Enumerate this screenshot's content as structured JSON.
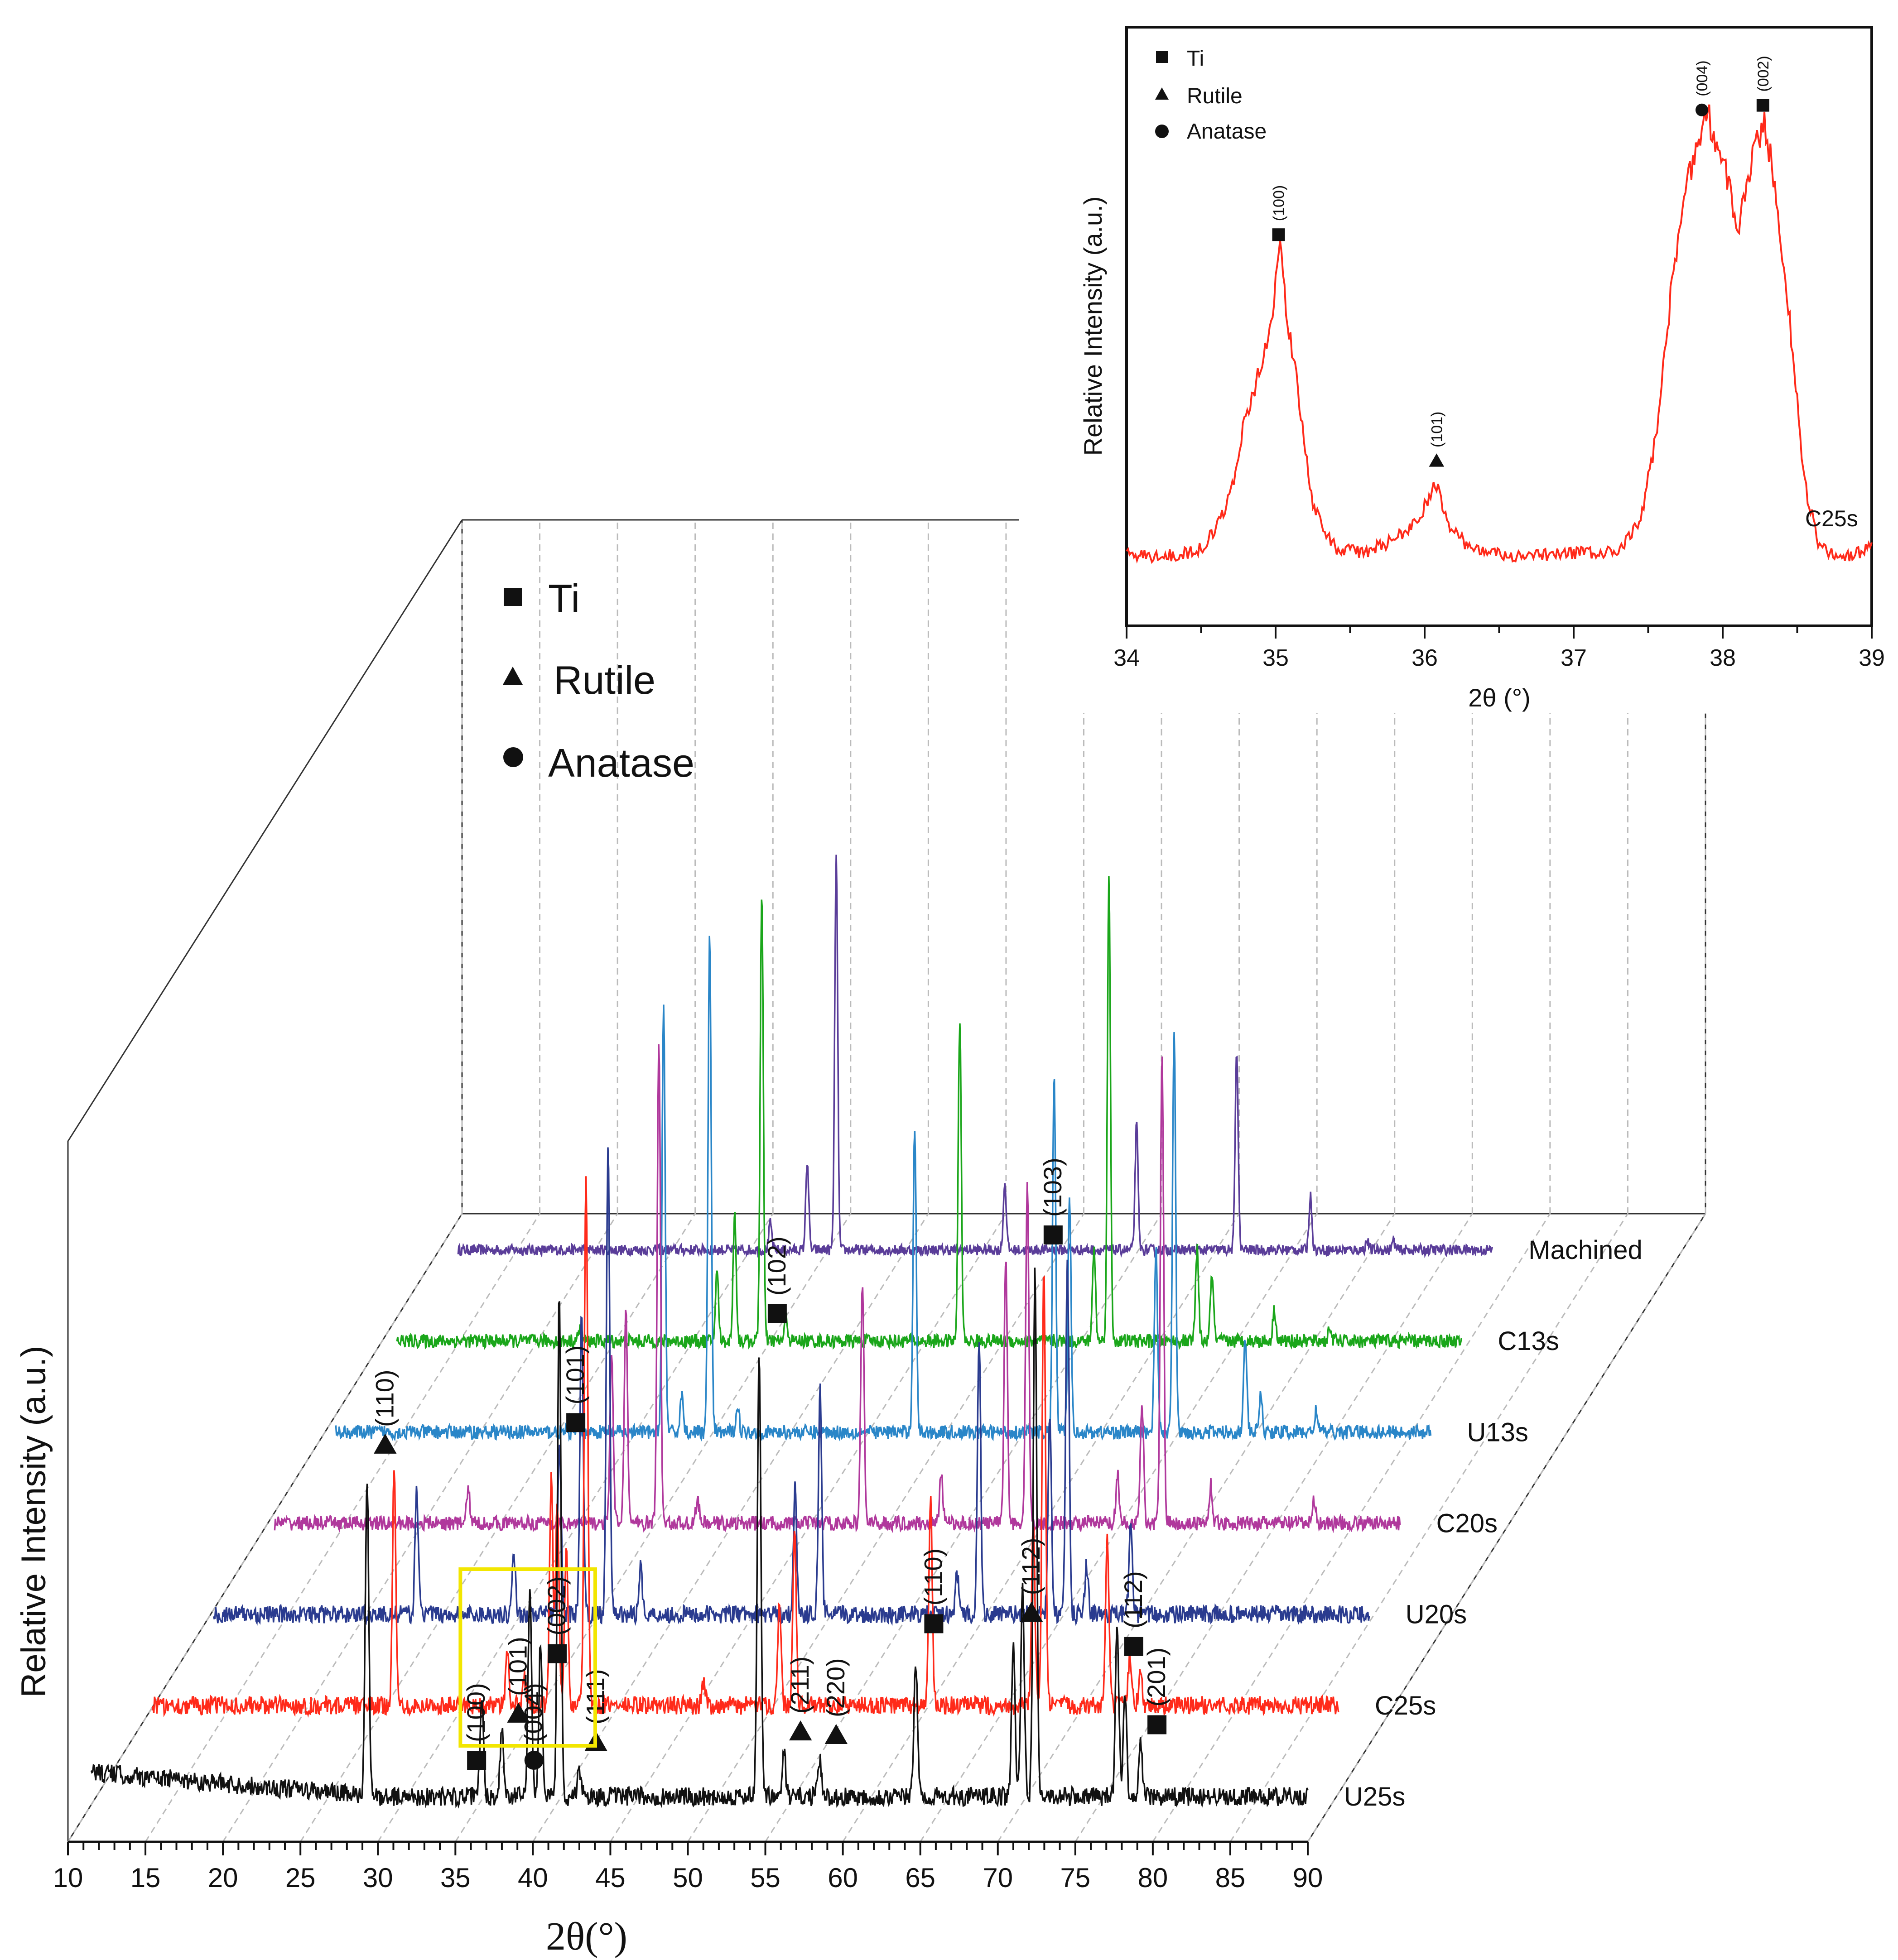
{
  "chart_data": [
    {
      "id": "main",
      "type": "line",
      "title": "",
      "xlabel": "2θ(°)",
      "ylabel": "Relative Intensity (a.u.)",
      "xlim": [
        10,
        90
      ],
      "x_ticks": [
        "10",
        "15",
        "20",
        "25",
        "30",
        "35",
        "40",
        "45",
        "50",
        "55",
        "60",
        "65",
        "70",
        "75",
        "80",
        "85",
        "90"
      ],
      "legend": [
        {
          "symbol": "square",
          "label": "Ti"
        },
        {
          "symbol": "triangle",
          "label": "Rutile"
        },
        {
          "symbol": "circle",
          "label": "Anatase"
        }
      ],
      "series": [
        {
          "name": "U25s",
          "color": "#111111",
          "noise": 0.012,
          "baseline_tilt": 0.05,
          "peaks": [
            [
              29.3,
              0.6
            ],
            [
              36.7,
              0.18
            ],
            [
              38.0,
              0.13
            ],
            [
              39.8,
              0.4
            ],
            [
              40.5,
              0.3
            ],
            [
              41.7,
              0.95
            ],
            [
              43.0,
              0.05
            ],
            [
              54.6,
              0.85
            ],
            [
              56.2,
              0.08
            ],
            [
              58.5,
              0.07
            ],
            [
              64.7,
              0.26
            ],
            [
              71.0,
              0.28
            ],
            [
              71.6,
              0.4
            ],
            [
              72.4,
              1.0
            ],
            [
              77.7,
              0.32
            ],
            [
              78.2,
              0.2
            ],
            [
              79.2,
              0.1
            ]
          ]
        },
        {
          "name": "C25s",
          "color": "#ff2a1a",
          "noise": 0.012,
          "baseline_tilt": 0.0,
          "peaks": [
            [
              27.5,
              0.45
            ],
            [
              35.0,
              0.1
            ],
            [
              36.1,
              0.06
            ],
            [
              37.9,
              0.45
            ],
            [
              38.3,
              0.4
            ],
            [
              38.9,
              0.3
            ],
            [
              40.2,
              1.05
            ],
            [
              48.0,
              0.05
            ],
            [
              53.0,
              0.2
            ],
            [
              54.0,
              0.35
            ],
            [
              63.0,
              0.4
            ],
            [
              69.8,
              0.35
            ],
            [
              70.5,
              0.85
            ],
            [
              74.7,
              0.32
            ],
            [
              76.2,
              0.1
            ],
            [
              76.9,
              0.07
            ]
          ]
        },
        {
          "name": "U20s",
          "color": "#2a3b8f",
          "noise": 0.012,
          "baseline_tilt": 0.0,
          "peaks": [
            [
              25.3,
              0.25
            ],
            [
              31.9,
              0.12
            ],
            [
              35.0,
              0.35
            ],
            [
              36.5,
              0.6
            ],
            [
              38.3,
              0.95
            ],
            [
              40.5,
              0.1
            ],
            [
              51.0,
              0.25
            ],
            [
              52.7,
              0.45
            ],
            [
              62.0,
              0.08
            ],
            [
              63.5,
              0.55
            ],
            [
              68.3,
              0.4
            ],
            [
              69.5,
              0.7
            ],
            [
              70.8,
              0.1
            ],
            [
              73.8,
              0.2
            ]
          ]
        },
        {
          "name": "C20s",
          "color": "#b0389c",
          "noise": 0.01,
          "baseline_tilt": 0.0,
          "peaks": [
            [
              25.0,
              0.07
            ],
            [
              35.0,
              0.35
            ],
            [
              36.0,
              0.45
            ],
            [
              38.3,
              1.0
            ],
            [
              41.0,
              0.05
            ],
            [
              52.5,
              0.5
            ],
            [
              58.0,
              0.1
            ],
            [
              62.5,
              0.55
            ],
            [
              64.0,
              0.7
            ],
            [
              70.3,
              0.1
            ],
            [
              72.0,
              0.25
            ],
            [
              73.4,
              0.98
            ],
            [
              76.8,
              0.08
            ],
            [
              84.0,
              0.05
            ]
          ]
        },
        {
          "name": "U13s",
          "color": "#2a86c8",
          "noise": 0.01,
          "baseline_tilt": 0.0,
          "peaks": [
            [
              35.0,
              0.9
            ],
            [
              36.3,
              0.08
            ],
            [
              38.3,
              1.05
            ],
            [
              40.3,
              0.06
            ],
            [
              53.0,
              0.65
            ],
            [
              63.0,
              0.75
            ],
            [
              64.1,
              0.5
            ],
            [
              70.3,
              0.4
            ],
            [
              71.6,
              0.85
            ],
            [
              76.7,
              0.2
            ],
            [
              77.8,
              0.08
            ],
            [
              81.8,
              0.05
            ]
          ]
        },
        {
          "name": "C13s",
          "color": "#1aa61a",
          "noise": 0.01,
          "baseline_tilt": 0.0,
          "peaks": [
            [
              25.0,
              0.03
            ],
            [
              35.1,
              0.15
            ],
            [
              36.4,
              0.28
            ],
            [
              38.4,
              0.98
            ],
            [
              40.2,
              0.05
            ],
            [
              53.0,
              0.7
            ],
            [
              62.9,
              0.2
            ],
            [
              64.0,
              1.0
            ],
            [
              70.5,
              0.2
            ],
            [
              71.6,
              0.15
            ],
            [
              76.2,
              0.07
            ],
            [
              80.3,
              0.03
            ]
          ]
        },
        {
          "name": "Machined",
          "color": "#5a3d99",
          "noise": 0.008,
          "baseline_tilt": 0.0,
          "peaks": [
            [
              35.2,
              0.06
            ],
            [
              38.0,
              0.2
            ],
            [
              40.2,
              0.88
            ],
            [
              53.0,
              0.15
            ],
            [
              63.0,
              0.28
            ],
            [
              70.6,
              0.45
            ],
            [
              76.2,
              0.12
            ],
            [
              80.5,
              0.02
            ],
            [
              82.5,
              0.02
            ]
          ]
        }
      ],
      "annotations": [
        {
          "label": "(110)",
          "symbol": "triangle",
          "x": 29.3
        },
        {
          "label": "(100)",
          "symbol": "square",
          "x": 35.2
        },
        {
          "label": "(101)",
          "symbol": "triangle",
          "x": 37.9
        },
        {
          "label": "(004)",
          "symbol": "circle",
          "x": 38.9
        },
        {
          "label": "(002)",
          "symbol": "square",
          "x": 40.4
        },
        {
          "label": "(101)",
          "symbol": "square",
          "x": 41.6
        },
        {
          "label": "(111)",
          "symbol": "triangle",
          "x": 42.9
        },
        {
          "label": "(102)",
          "symbol": "square",
          "x": 54.6
        },
        {
          "label": "(211)",
          "symbol": "triangle",
          "x": 56.1
        },
        {
          "label": "(220)",
          "symbol": "triangle",
          "x": 58.4
        },
        {
          "label": "(110)",
          "symbol": "square",
          "x": 64.7
        },
        {
          "label": "(112)",
          "symbol": "triangle",
          "x": 71.0
        },
        {
          "label": "(103)",
          "symbol": "square",
          "x": 72.4
        },
        {
          "label": "(112)",
          "symbol": "square",
          "x": 77.6
        },
        {
          "label": "(201)",
          "symbol": "square",
          "x": 79.1
        }
      ],
      "highlight_box": {
        "x_range": [
          34.3,
          43.0
        ],
        "color": "#f2e600"
      }
    },
    {
      "id": "inset",
      "type": "line",
      "title": "",
      "xlabel": "2θ (°)",
      "ylabel": "Relative Intensity (a.u.)",
      "xlim": [
        34,
        39
      ],
      "x_ticks": [
        "34",
        "35",
        "36",
        "37",
        "38",
        "39"
      ],
      "series_label": "C25s",
      "color": "#ff2a1a",
      "legend": [
        {
          "symbol": "square",
          "label": "Ti"
        },
        {
          "symbol": "triangle",
          "label": "Rutile"
        },
        {
          "symbol": "circle",
          "label": "Anatase"
        }
      ],
      "points": [
        [
          34.0,
          0.05
        ],
        [
          34.2,
          0.04
        ],
        [
          34.4,
          0.05
        ],
        [
          34.5,
          0.06
        ],
        [
          34.6,
          0.1
        ],
        [
          34.7,
          0.18
        ],
        [
          34.8,
          0.35
        ],
        [
          34.9,
          0.45
        ],
        [
          34.95,
          0.52
        ],
        [
          35.0,
          0.63
        ],
        [
          35.03,
          0.72
        ],
        [
          35.08,
          0.55
        ],
        [
          35.15,
          0.4
        ],
        [
          35.25,
          0.15
        ],
        [
          35.4,
          0.06
        ],
        [
          35.6,
          0.05
        ],
        [
          35.8,
          0.08
        ],
        [
          35.95,
          0.12
        ],
        [
          36.05,
          0.18
        ],
        [
          36.08,
          0.2
        ],
        [
          36.15,
          0.12
        ],
        [
          36.3,
          0.06
        ],
        [
          36.6,
          0.04
        ],
        [
          37.0,
          0.05
        ],
        [
          37.3,
          0.05
        ],
        [
          37.45,
          0.12
        ],
        [
          37.55,
          0.3
        ],
        [
          37.65,
          0.6
        ],
        [
          37.75,
          0.85
        ],
        [
          37.85,
          0.95
        ],
        [
          37.9,
          1.0
        ],
        [
          38.0,
          0.9
        ],
        [
          38.1,
          0.75
        ],
        [
          38.2,
          0.9
        ],
        [
          38.28,
          0.98
        ],
        [
          38.35,
          0.85
        ],
        [
          38.45,
          0.55
        ],
        [
          38.55,
          0.2
        ],
        [
          38.65,
          0.06
        ],
        [
          38.8,
          0.04
        ],
        [
          39.0,
          0.06
        ]
      ],
      "annotations": [
        {
          "label": "(100)",
          "symbol": "square",
          "x": 35.02
        },
        {
          "label": "(101)",
          "symbol": "triangle",
          "x": 36.08
        },
        {
          "label": "(004)",
          "symbol": "circle",
          "x": 37.86
        },
        {
          "label": "(002)",
          "symbol": "square",
          "x": 38.27
        }
      ]
    }
  ]
}
